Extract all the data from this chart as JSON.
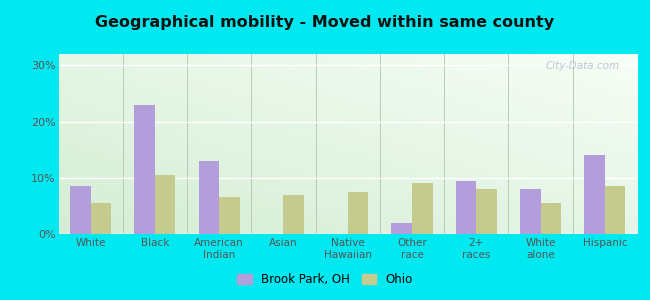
{
  "title": "Geographical mobility - Moved within same county",
  "categories": [
    "White",
    "Black",
    "American\nIndian",
    "Asian",
    "Native\nHawaiian",
    "Other\nrace",
    "2+\nraces",
    "White\nalone",
    "Hispanic"
  ],
  "brook_park": [
    8.5,
    23.0,
    13.0,
    0.0,
    0.0,
    2.0,
    9.5,
    8.0,
    14.0
  ],
  "ohio": [
    5.5,
    10.5,
    6.5,
    7.0,
    7.5,
    9.0,
    8.0,
    5.5,
    8.5
  ],
  "bar_color_brook": "#b39ddb",
  "bar_color_ohio": "#c5ca8e",
  "outer_bg": "#00e8f0",
  "yticks": [
    0,
    10,
    20,
    30
  ],
  "ylim": [
    0,
    32
  ],
  "legend_brook": "Brook Park, OH",
  "legend_ohio": "Ohio",
  "watermark": "City-Data.com"
}
